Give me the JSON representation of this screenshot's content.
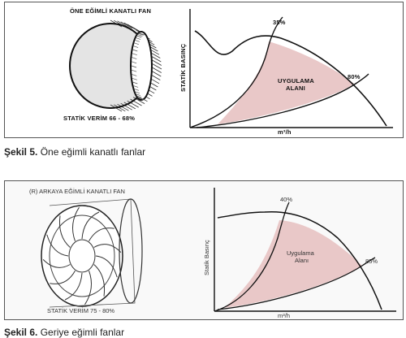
{
  "figure5": {
    "fan_title": "ÖNE EĞİMLİ KANATLI FAN",
    "efficiency": "STATİK VERİM 66 - 68%",
    "y_label": "STATİK BASINÇ",
    "x_label": "m³/h",
    "area_label_1": "UYGULAMA",
    "area_label_2": "ALANI",
    "pct_top": "35%",
    "pct_right": "80%",
    "caption_num": "Şekil 5.",
    "caption_text": " Öne eğimli kanatlı fanlar"
  },
  "figure6": {
    "fan_title": "(R) ARKAYA EĞİMLİ KANATLI FAN",
    "efficiency": "STATİK VERİM 75 - 80%",
    "y_label": "Statik Basınç",
    "x_label": "m³/h",
    "area_label_1": "Uygulama",
    "area_label_2": "Alanı",
    "pct_top": "40%",
    "pct_right": "85%",
    "caption_num": "Şekil 6.",
    "caption_text": " Geriye eğimli fanlar"
  },
  "colors": {
    "area_fill": "#e9c8c8",
    "line": "#111111"
  }
}
